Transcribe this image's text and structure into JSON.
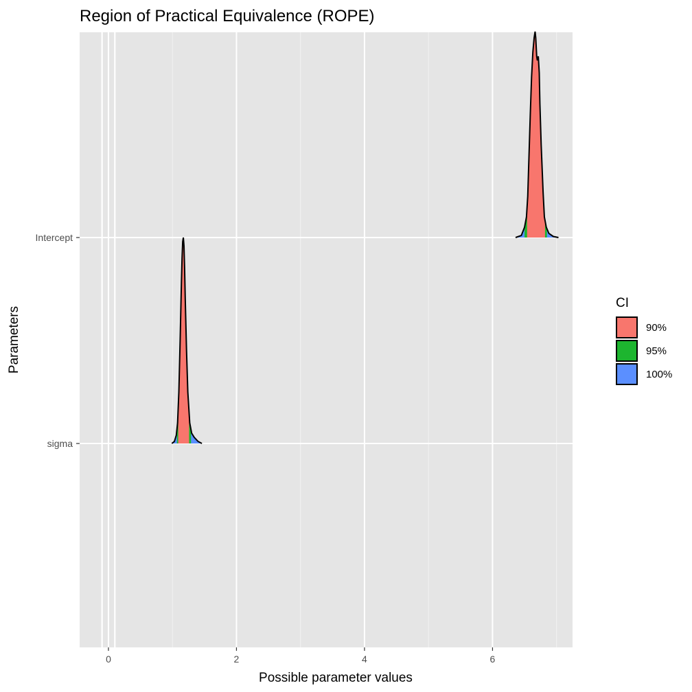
{
  "chart_data": {
    "type": "area",
    "title": "Region of Practical Equivalence (ROPE)",
    "xlabel": "Possible parameter values",
    "ylabel": "Parameters",
    "xlim": [
      -0.45,
      7.25
    ],
    "x_ticks": [
      0,
      2,
      4,
      6
    ],
    "x_tick_labels": [
      "0",
      "2",
      "4",
      "6"
    ],
    "y_categories": [
      "sigma",
      "Intercept"
    ],
    "rope": [
      -0.1,
      0.1
    ],
    "grid": true,
    "legend": {
      "title": "CI",
      "position": "right",
      "entries": [
        {
          "label": "90%",
          "color": "#F8766D"
        },
        {
          "label": "95%",
          "color": "#1DB52F"
        },
        {
          "label": "100%",
          "color": "#5B8FFF"
        }
      ]
    },
    "series": [
      {
        "parameter": "Intercept",
        "density_x": [
          6.36,
          6.45,
          6.5,
          6.53,
          6.55,
          6.57,
          6.59,
          6.61,
          6.63,
          6.65,
          6.665,
          6.675,
          6.69,
          6.7,
          6.715,
          6.73,
          6.74,
          6.76,
          6.79,
          6.81,
          6.84,
          6.88,
          6.95,
          7.03
        ],
        "density_y": [
          0.0,
          0.01,
          0.05,
          0.1,
          0.2,
          0.4,
          0.6,
          0.78,
          0.9,
          0.97,
          1.0,
          0.97,
          0.88,
          0.86,
          0.88,
          0.8,
          0.65,
          0.45,
          0.22,
          0.1,
          0.05,
          0.02,
          0.005,
          0.0
        ],
        "ci_90": [
          6.54,
          6.82
        ],
        "ci_95": [
          6.5,
          6.85
        ],
        "ci_100": [
          6.36,
          7.03
        ]
      },
      {
        "parameter": "sigma",
        "density_x": [
          0.99,
          1.03,
          1.06,
          1.08,
          1.1,
          1.12,
          1.14,
          1.15,
          1.16,
          1.17,
          1.18,
          1.19,
          1.2,
          1.22,
          1.24,
          1.27,
          1.3,
          1.34,
          1.4,
          1.46
        ],
        "density_y": [
          0.0,
          0.01,
          0.04,
          0.1,
          0.25,
          0.5,
          0.78,
          0.9,
          0.98,
          1.0,
          0.96,
          0.85,
          0.7,
          0.45,
          0.25,
          0.1,
          0.05,
          0.03,
          0.01,
          0.0
        ],
        "ci_90": [
          1.09,
          1.26
        ],
        "ci_95": [
          1.07,
          1.29
        ],
        "ci_100": [
          0.99,
          1.46
        ]
      }
    ]
  }
}
